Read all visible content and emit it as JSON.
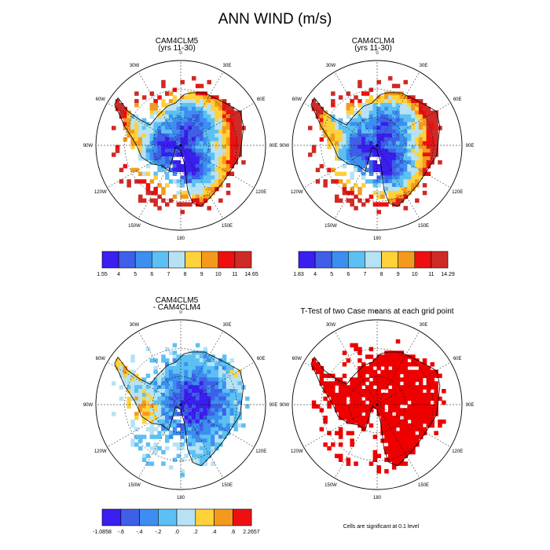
{
  "title": "ANN WIND (m/s)",
  "colors": {
    "blue_dark": "#3b1ef0",
    "blue": "#3f5fe8",
    "blue_mid": "#3c8ef0",
    "blue_light": "#5cc0f3",
    "blue_pale": "#b6e2f4",
    "yellow": "#ffd13a",
    "orange": "#f39a1c",
    "red": "#ee1010",
    "dark_red": "#cf2a26",
    "sig_red": "#ee0000"
  },
  "chart_data": [
    {
      "type": "heatmap",
      "projection": "south-polar-stereographic",
      "title": "CAM4CLM5",
      "subtitle": "(yrs 11-30)",
      "lon_labels": [
        "0",
        "30E",
        "60E",
        "90E",
        "120E",
        "150E",
        "180",
        "150W",
        "120W",
        "90W",
        "60W",
        "30W"
      ],
      "colorbar": {
        "labels": [
          "1.55",
          "4",
          "5",
          "6",
          "7",
          "8",
          "9",
          "10",
          "11",
          "14.65"
        ]
      }
    },
    {
      "type": "heatmap",
      "projection": "south-polar-stereographic",
      "title": "CAM4CLM4",
      "subtitle": "(yrs 11-30)",
      "lon_labels": [
        "0",
        "30E",
        "60E",
        "90E",
        "120E",
        "150E",
        "180",
        "150W",
        "120W",
        "90W",
        "60W",
        "30W"
      ],
      "colorbar": {
        "labels": [
          "1.83",
          "4",
          "5",
          "6",
          "7",
          "8",
          "9",
          "10",
          "11",
          "14.29"
        ]
      }
    },
    {
      "type": "heatmap",
      "projection": "south-polar-stereographic",
      "title": "CAM4CLM5",
      "subtitle": "- CAM4CLM4",
      "lon_labels": [
        "0",
        "30E",
        "60E",
        "90E",
        "120E",
        "150E",
        "180",
        "150W",
        "120W",
        "90W",
        "60W",
        "30W"
      ],
      "colorbar": {
        "labels": [
          "-1.0858",
          "-.6",
          "-.4",
          "-.2",
          ".0",
          ".2",
          ".4",
          ".6",
          "2.2657"
        ]
      }
    },
    {
      "type": "heatmap",
      "projection": "south-polar-stereographic",
      "title": "T-Test of two Case means at each grid point",
      "lon_labels": [
        "0",
        "30E",
        "60E",
        "90E",
        "120E",
        "150E",
        "180",
        "150W",
        "120W",
        "90W",
        "60W",
        "30W"
      ],
      "footnote": "Cells are significant at 0.1 level"
    }
  ]
}
